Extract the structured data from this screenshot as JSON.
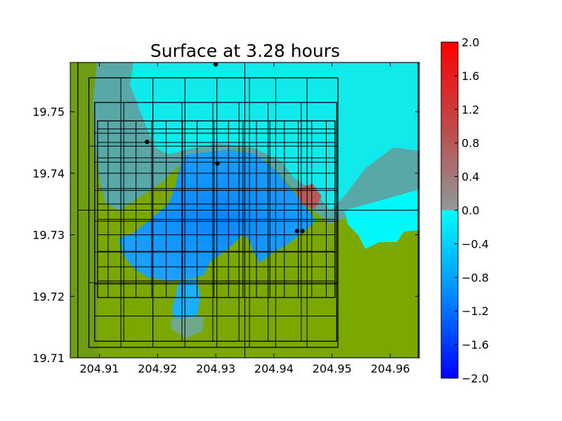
{
  "chart_data": {
    "type": "heatmap",
    "title": "Surface at 3.28 hours",
    "xlabel": "",
    "ylabel": "",
    "xlim": [
      204.905,
      204.965
    ],
    "ylim": [
      19.71,
      19.758
    ],
    "x_ticks": [
      "204.91",
      "204.92",
      "204.93",
      "204.94",
      "204.95",
      "204.96"
    ],
    "x_tick_values": [
      204.91,
      204.92,
      204.93,
      204.94,
      204.95,
      204.96
    ],
    "y_ticks": [
      "19.71",
      "19.72",
      "19.73",
      "19.74",
      "19.75"
    ],
    "y_tick_values": [
      19.71,
      19.72,
      19.73,
      19.74,
      19.75
    ],
    "colorbar": {
      "range": [
        -2.0,
        2.0
      ],
      "ticks": [
        "2.0",
        "1.6",
        "1.2",
        "0.8",
        "0.4",
        "0.0",
        "−0.4",
        "−0.8",
        "−1.2",
        "−1.6",
        "−2.0"
      ],
      "tick_values": [
        2.0,
        1.6,
        1.2,
        0.8,
        0.4,
        0.0,
        -0.4,
        -0.8,
        -1.2,
        -1.6,
        -2.0
      ],
      "colors": {
        "low": "#0000ff",
        "mid_low": "#00ffff",
        "mid_high": "#808080",
        "high": "#ff0000"
      }
    },
    "land_color": "#7ba800",
    "gauges": [
      {
        "x": 204.93,
        "y": 19.7577
      },
      {
        "x": 204.9182,
        "y": 19.7451
      },
      {
        "x": 204.9303,
        "y": 19.7416
      },
      {
        "x": 204.944,
        "y": 19.7306
      },
      {
        "x": 204.9449,
        "y": 19.7306
      }
    ],
    "grid_patches": [
      {
        "x1": 204.9063,
        "x2": 204.9648,
        "y1": 19.71,
        "y2": 19.758,
        "xs": [
          204.935
        ],
        "ys": [
          19.734
        ]
      },
      {
        "x1": 204.9082,
        "x2": 204.951,
        "y1": 19.7117,
        "y2": 19.7555,
        "xs": [
          204.9137,
          204.9192,
          204.9247,
          204.9302,
          204.9358,
          204.9403,
          204.9457
        ],
        "ys": [
          19.7222,
          19.7444
        ]
      },
      {
        "x1": 204.9092,
        "x2": 204.9508,
        "y1": 19.7127,
        "y2": 19.7515,
        "xs": [
          204.9142,
          204.9192,
          204.9242,
          204.9295,
          204.934,
          204.939,
          204.9447
        ],
        "ys": [
          19.7168,
          19.722,
          19.7272,
          19.7322,
          19.7372,
          19.7418,
          19.7465
        ]
      },
      {
        "x1": 204.9097,
        "x2": 204.9505,
        "y1": 19.7198,
        "y2": 19.7485,
        "xs": [
          204.9115,
          204.9137,
          204.9163,
          204.919,
          204.9215,
          204.9243,
          204.9268,
          204.9297,
          204.9322,
          204.9347,
          204.937,
          204.9393,
          204.9418,
          204.9442,
          204.9465,
          204.949
        ],
        "ys": [
          19.7225,
          19.7248,
          19.7273,
          19.73,
          19.7325,
          19.735,
          19.7375,
          19.74,
          19.7425,
          19.745,
          19.7472
        ]
      }
    ]
  }
}
